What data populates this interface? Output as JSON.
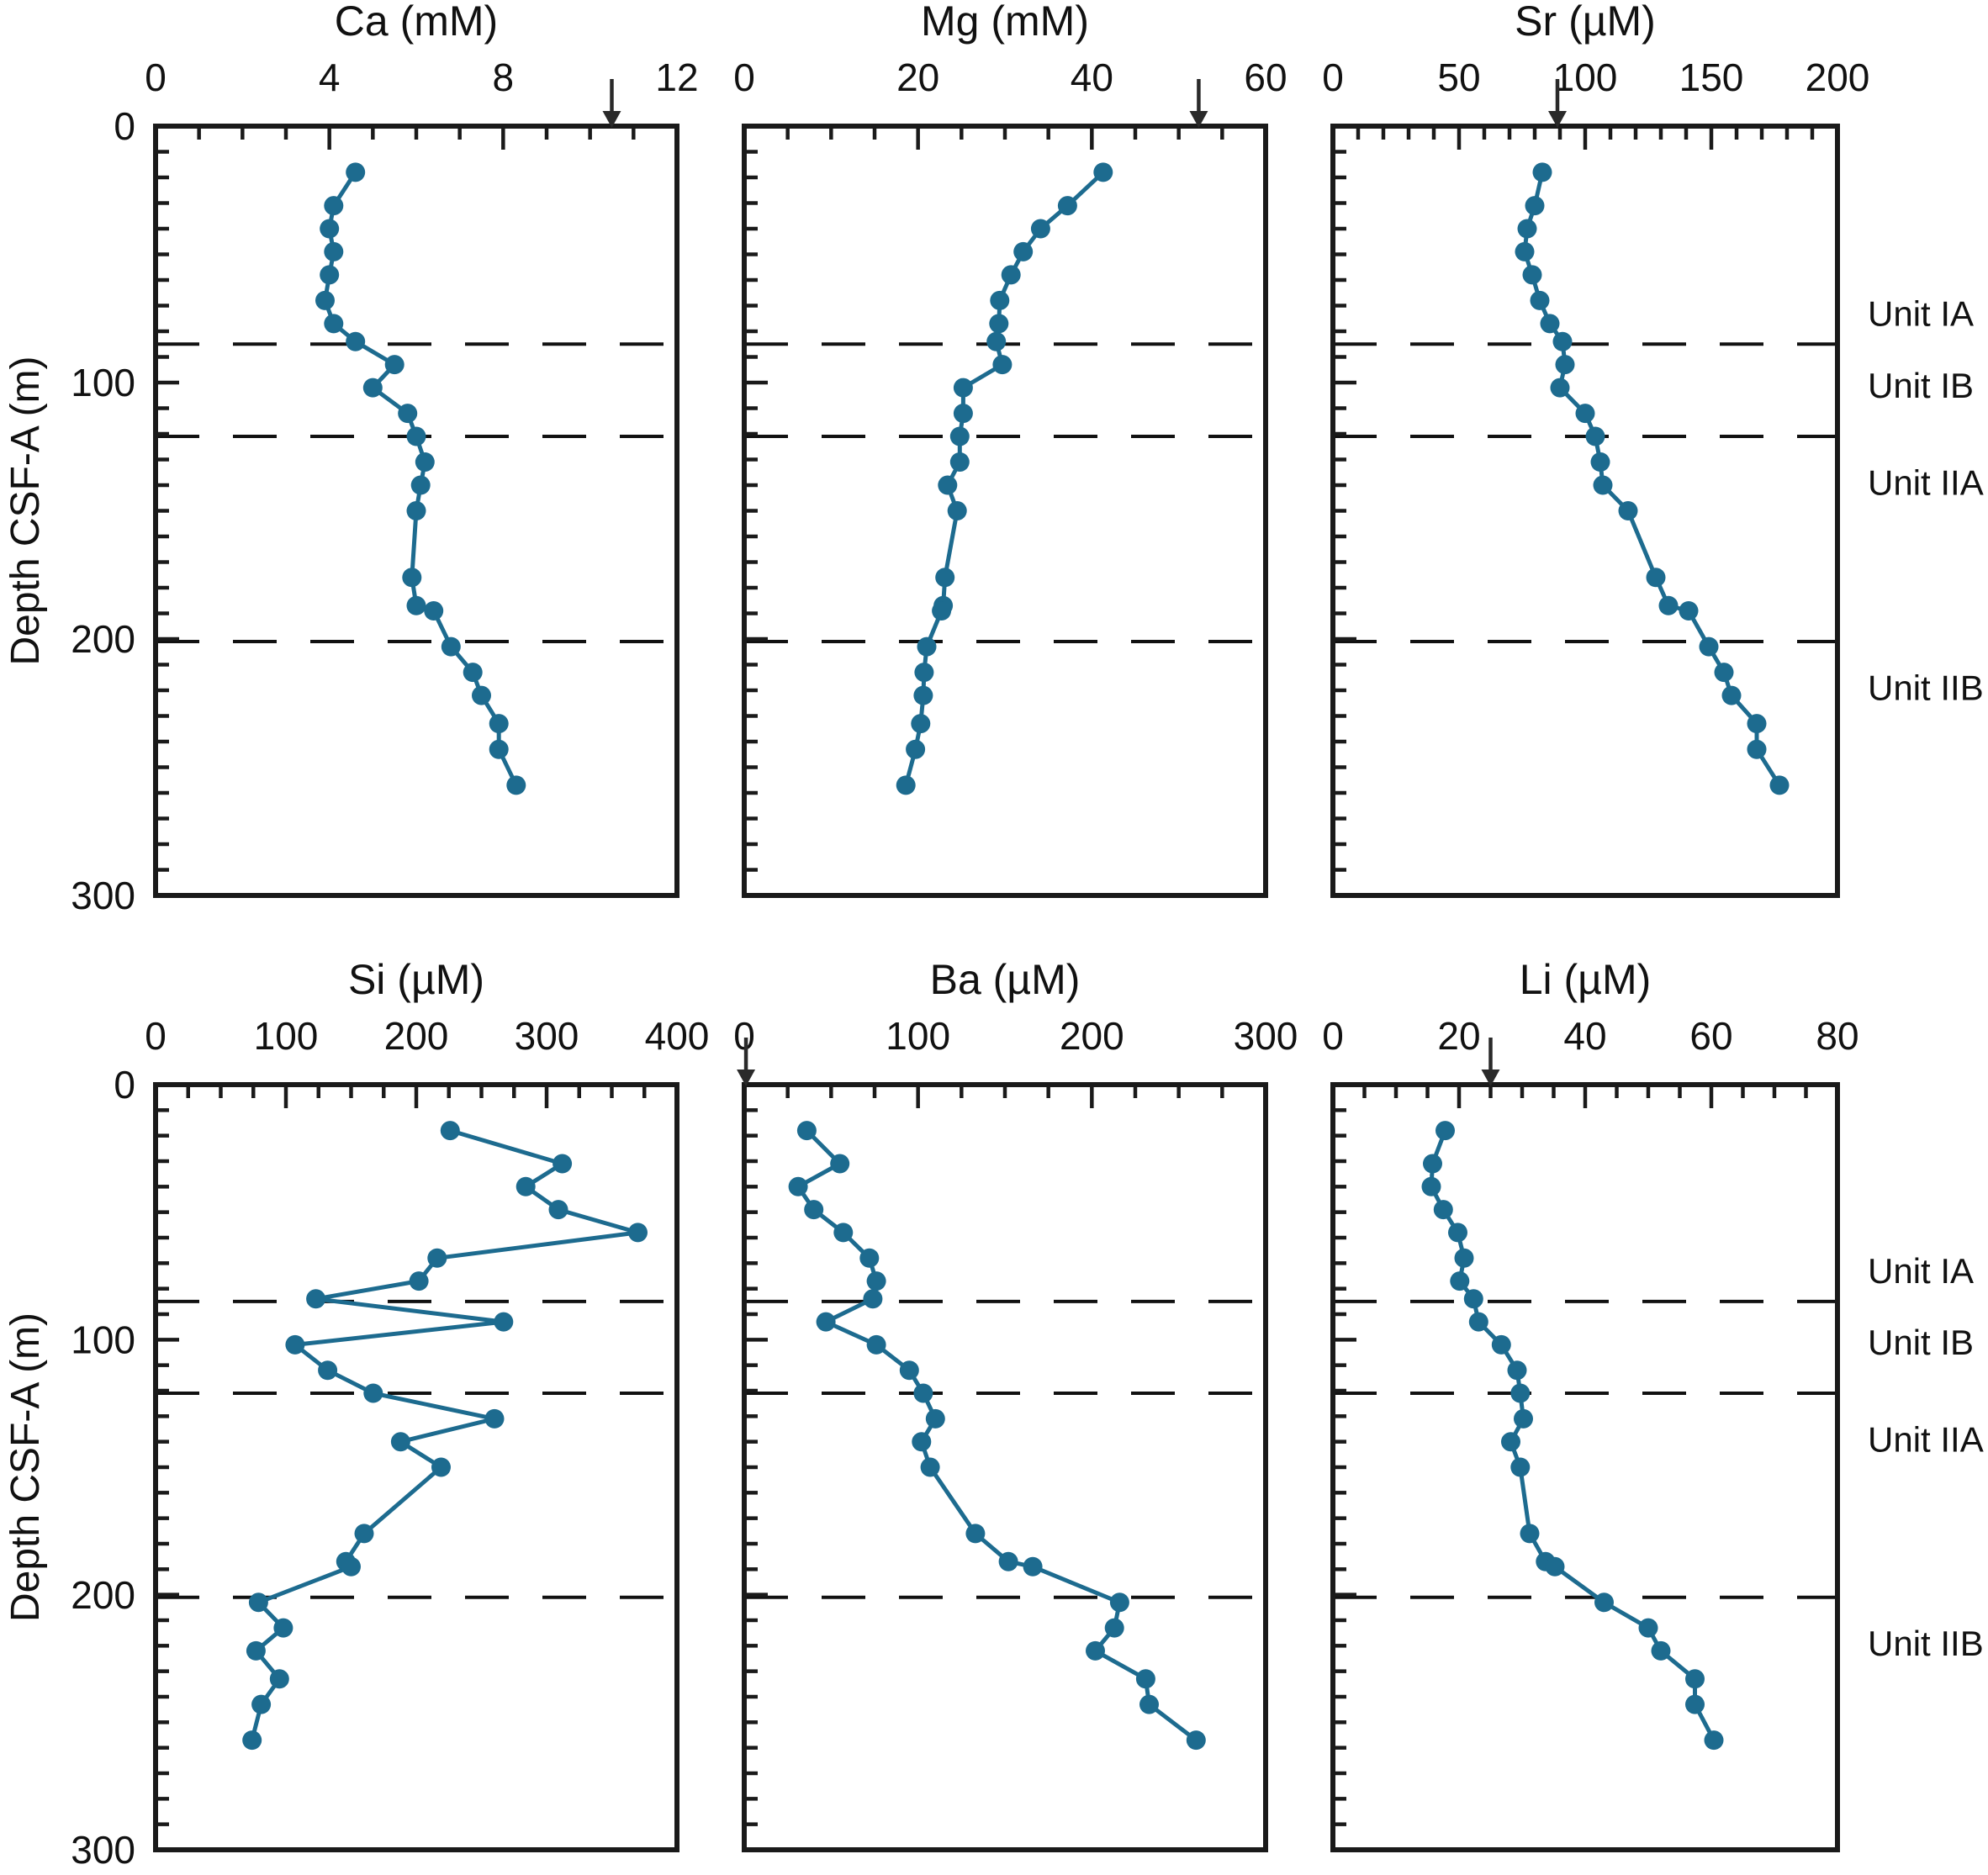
{
  "figure": {
    "background_color": "#ffffff",
    "axis_color": "#1a1a1a",
    "series_color": "#1d6b8f",
    "arrow_color": "#2a2a2a",
    "dashed_line_color": "#111111"
  },
  "chart_data": {
    "type": "line",
    "subtype": "depth-profiles",
    "grid": "off",
    "legend": "none",
    "shared_y_axis": {
      "label": "Depth CSF-A (m)",
      "range": [
        0,
        300
      ],
      "inverted": true,
      "major_ticks": [
        0,
        100,
        200,
        300
      ],
      "minor_tick_step": 10
    },
    "depths_m": [
      18,
      31,
      40,
      49,
      58,
      68,
      77,
      84,
      93,
      102,
      112,
      121,
      131,
      140,
      150,
      176,
      187,
      189,
      203,
      213,
      222,
      233,
      243,
      257
    ],
    "dashed_unit_boundaries_m": [
      85,
      121,
      201
    ],
    "unit_labels": [
      {
        "text": "Unit IA",
        "depth_m": 73
      },
      {
        "text": "Unit IB",
        "depth_m": 101
      },
      {
        "text": "Unit IIA",
        "depth_m": 139
      },
      {
        "text": "Unit IIB",
        "depth_m": 219
      }
    ],
    "panels": [
      {
        "id": "ca",
        "title": "Ca (mM)",
        "row": 0,
        "col": 0,
        "x_range": [
          0,
          12
        ],
        "x_major_ticks": [
          0,
          4,
          8,
          12
        ],
        "x_minor_tick_step": 1,
        "seawater_arrow_value": 10.5,
        "values": [
          4.6,
          4.1,
          4.0,
          4.1,
          4.0,
          3.9,
          4.1,
          4.6,
          5.5,
          5.0,
          5.8,
          6.0,
          6.2,
          6.1,
          6.0,
          5.9,
          6.0,
          6.4,
          6.8,
          7.3,
          7.5,
          7.9,
          7.9,
          8.3
        ]
      },
      {
        "id": "mg",
        "title": "Mg (mM)",
        "row": 0,
        "col": 1,
        "x_range": [
          0,
          60
        ],
        "x_major_ticks": [
          0,
          20,
          40,
          60
        ],
        "x_minor_tick_step": 5,
        "seawater_arrow_value": 52.3,
        "values": [
          41.3,
          37.2,
          34.1,
          32.1,
          30.7,
          29.4,
          29.3,
          29.0,
          29.7,
          25.2,
          25.2,
          24.8,
          24.8,
          23.4,
          24.5,
          23.1,
          22.9,
          22.7,
          21.0,
          20.7,
          20.6,
          20.3,
          19.7,
          18.6
        ]
      },
      {
        "id": "sr",
        "title": "Sr (µM)",
        "row": 0,
        "col": 2,
        "x_range": [
          0,
          200
        ],
        "x_major_ticks": [
          0,
          50,
          100,
          150,
          200
        ],
        "x_minor_tick_step": 10,
        "seawater_arrow_value": 89,
        "values": [
          83,
          80,
          77,
          76,
          79,
          82,
          86,
          91,
          92,
          90,
          100,
          104,
          106,
          107,
          117,
          128,
          133,
          141,
          149,
          155,
          158,
          168,
          168,
          177
        ]
      },
      {
        "id": "si",
        "title": "Si (µM)",
        "row": 1,
        "col": 0,
        "x_range": [
          0,
          400
        ],
        "x_major_ticks": [
          0,
          100,
          200,
          300,
          400
        ],
        "x_minor_tick_step": 25,
        "seawater_arrow_value": null,
        "values": [
          226,
          312,
          284,
          309,
          370,
          216,
          202,
          123,
          267,
          107,
          132,
          167,
          260,
          188,
          219,
          160,
          146,
          150,
          79,
          98,
          77,
          95,
          81,
          74
        ]
      },
      {
        "id": "ba",
        "title": "Ba (µM)",
        "row": 1,
        "col": 1,
        "x_range": [
          0,
          300
        ],
        "x_major_ticks": [
          0,
          100,
          200,
          300
        ],
        "x_minor_tick_step": 25,
        "seawater_arrow_value": 1,
        "values": [
          36,
          55,
          31,
          40,
          57,
          72,
          76,
          74,
          47,
          76,
          95,
          103,
          110,
          102,
          107,
          133,
          152,
          166,
          216,
          213,
          202,
          231,
          233,
          260
        ]
      },
      {
        "id": "li",
        "title": "Li (µM)",
        "row": 1,
        "col": 2,
        "x_range": [
          0,
          80
        ],
        "x_major_ticks": [
          0,
          20,
          40,
          60,
          80
        ],
        "x_minor_tick_step": 5,
        "seawater_arrow_value": 25,
        "values": [
          17.8,
          15.8,
          15.6,
          17.5,
          19.8,
          20.8,
          20.1,
          22.3,
          23.1,
          26.7,
          29.2,
          29.7,
          30.2,
          28.2,
          29.7,
          31.2,
          33.7,
          35.2,
          43,
          50,
          52,
          57.4,
          57.4,
          60.4
        ]
      }
    ]
  }
}
